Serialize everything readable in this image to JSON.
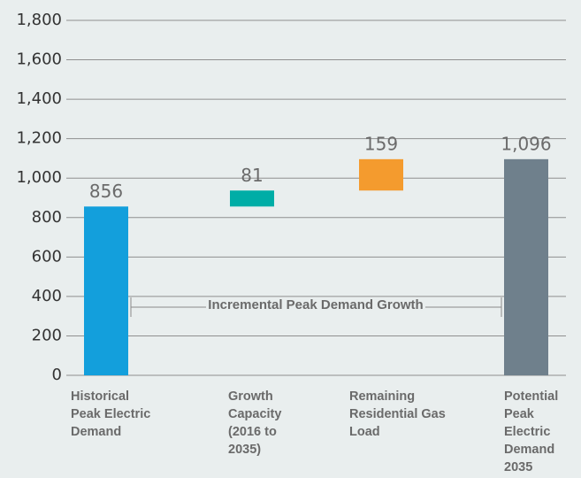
{
  "chart_data": {
    "type": "waterfall",
    "categories": [
      "Historical Peak Electric Demand",
      "Growth Capacity (2016 to 2035)",
      "Remaining Residential Gas Load",
      "Potential Peak Electric Demand 2035"
    ],
    "values": [
      856,
      81,
      159,
      1096
    ],
    "value_labels": [
      "856",
      "81",
      "159",
      "1,096"
    ],
    "measure": [
      "absolute",
      "relative",
      "relative",
      "total"
    ],
    "colors": [
      "#139fdc",
      "#00ada6",
      "#f49b2e",
      "#6f808c"
    ],
    "ylim": [
      0,
      1800
    ],
    "yticks": [
      0,
      200,
      400,
      600,
      800,
      {
        "value": 1000,
        "label": "1,000"
      },
      {
        "value": 1200,
        "label": "1,200"
      },
      {
        "value": 1400,
        "label": "1,400"
      },
      {
        "value": 1600,
        "label": "1,600"
      },
      {
        "value": 1800,
        "label": "1,800"
      }
    ],
    "grid": true,
    "annotation": "Incremental Peak Demand Growth"
  }
}
